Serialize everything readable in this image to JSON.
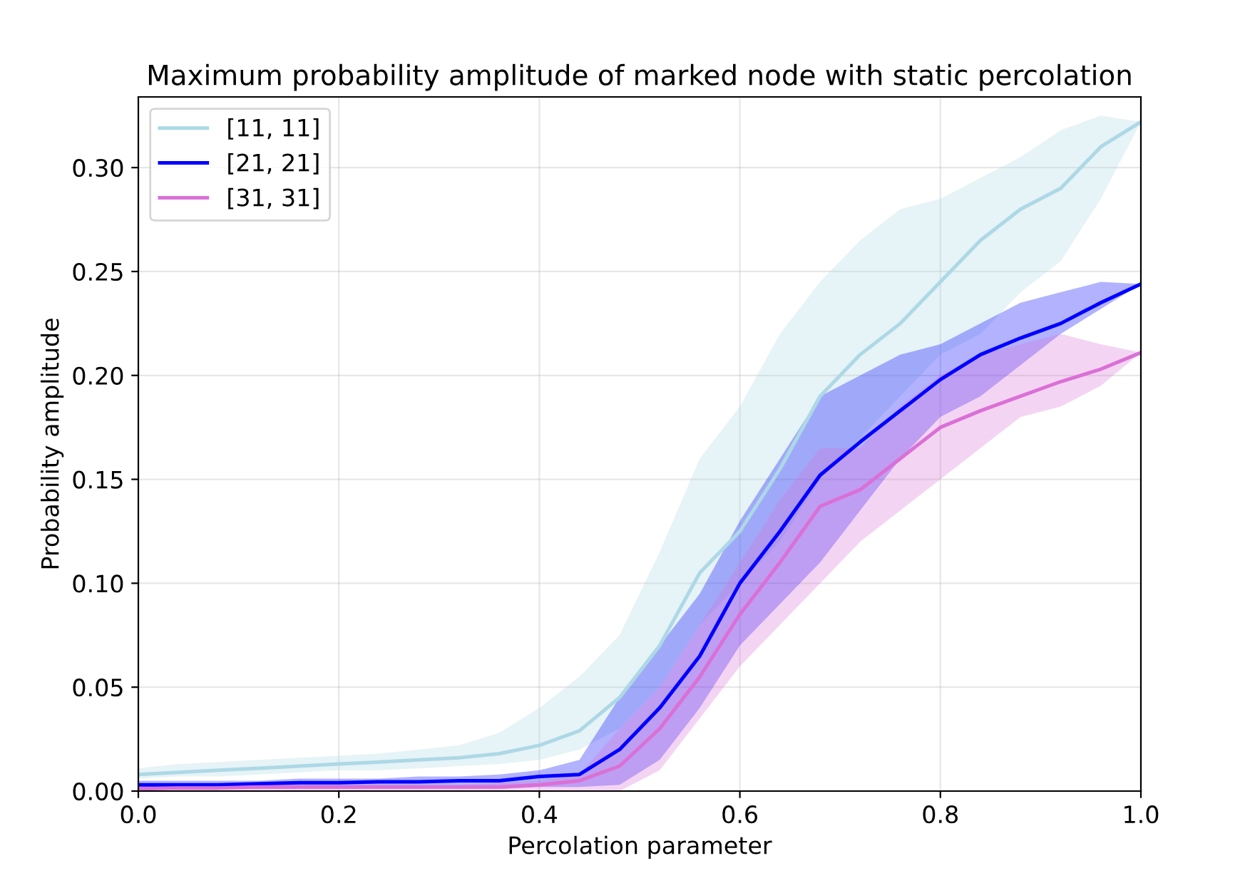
{
  "chart_data": {
    "type": "line",
    "title": "Maximum probability amplitude of marked node with static percolation",
    "xlabel": "Percolation parameter",
    "ylabel": "Probability amplitude",
    "x": [
      0,
      0.04,
      0.08,
      0.12,
      0.16,
      0.2,
      0.24,
      0.28,
      0.32,
      0.36,
      0.4,
      0.44,
      0.48,
      0.52,
      0.56,
      0.6,
      0.64,
      0.68,
      0.72,
      0.76,
      0.8,
      0.84,
      0.88,
      0.92,
      0.96,
      1.0
    ],
    "series": [
      {
        "name": "[11, 11]",
        "color": "#add8e6",
        "values": [
          0.008,
          0.009,
          0.01,
          0.011,
          0.012,
          0.013,
          0.014,
          0.015,
          0.016,
          0.018,
          0.022,
          0.029,
          0.045,
          0.07,
          0.105,
          0.125,
          0.155,
          0.19,
          0.21,
          0.225,
          0.245,
          0.265,
          0.28,
          0.29,
          0.31,
          0.322
        ],
        "lower": [
          0.006,
          0.007,
          0.007,
          0.008,
          0.009,
          0.01,
          0.01,
          0.011,
          0.012,
          0.013,
          0.015,
          0.02,
          0.03,
          0.05,
          0.08,
          0.1,
          0.12,
          0.15,
          0.17,
          0.19,
          0.21,
          0.22,
          0.24,
          0.255,
          0.285,
          0.322
        ],
        "upper": [
          0.011,
          0.013,
          0.014,
          0.015,
          0.016,
          0.017,
          0.018,
          0.02,
          0.022,
          0.028,
          0.04,
          0.055,
          0.075,
          0.115,
          0.16,
          0.185,
          0.22,
          0.245,
          0.265,
          0.28,
          0.285,
          0.295,
          0.305,
          0.318,
          0.325,
          0.322
        ]
      },
      {
        "name": "[21, 21]",
        "color": "#0000ff",
        "values": [
          0.003,
          0.003,
          0.003,
          0.0035,
          0.004,
          0.004,
          0.0045,
          0.0045,
          0.005,
          0.005,
          0.007,
          0.008,
          0.02,
          0.04,
          0.065,
          0.1,
          0.125,
          0.152,
          0.168,
          0.183,
          0.198,
          0.21,
          0.218,
          0.225,
          0.235,
          0.244
        ],
        "lower": [
          0.001,
          0.001,
          0.001,
          0.001,
          0.001,
          0.001,
          0.001,
          0.001,
          0.001,
          0.001,
          0.002,
          0.002,
          0.003,
          0.015,
          0.04,
          0.07,
          0.09,
          0.11,
          0.135,
          0.16,
          0.18,
          0.19,
          0.205,
          0.22,
          0.232,
          0.244
        ],
        "upper": [
          0.005,
          0.005,
          0.005,
          0.005,
          0.006,
          0.006,
          0.006,
          0.007,
          0.007,
          0.008,
          0.01,
          0.015,
          0.045,
          0.07,
          0.095,
          0.13,
          0.16,
          0.19,
          0.2,
          0.21,
          0.215,
          0.225,
          0.235,
          0.24,
          0.245,
          0.244
        ]
      },
      {
        "name": "[31, 31]",
        "color": "#da70d6",
        "values": [
          0.001,
          0.0015,
          0.0015,
          0.002,
          0.002,
          0.002,
          0.002,
          0.002,
          0.002,
          0.002,
          0.003,
          0.005,
          0.012,
          0.03,
          0.055,
          0.085,
          0.11,
          0.137,
          0.145,
          0.16,
          0.175,
          0.183,
          0.19,
          0.197,
          0.203,
          0.211
        ],
        "lower": [
          0,
          0,
          0,
          0,
          0,
          0,
          0,
          0,
          0,
          0,
          0,
          0,
          0,
          0.01,
          0.035,
          0.06,
          0.08,
          0.1,
          0.12,
          0.135,
          0.15,
          0.165,
          0.18,
          0.185,
          0.195,
          0.211
        ],
        "upper": [
          0.003,
          0.003,
          0.003,
          0.003,
          0.003,
          0.003,
          0.003,
          0.003,
          0.003,
          0.004,
          0.005,
          0.008,
          0.03,
          0.05,
          0.08,
          0.11,
          0.14,
          0.165,
          0.165,
          0.185,
          0.2,
          0.21,
          0.215,
          0.22,
          0.215,
          0.211
        ]
      }
    ],
    "xlim": [
      0,
      1
    ],
    "ylim": [
      0,
      0.334
    ],
    "xticks": [
      {
        "value": 0,
        "label": "0.0"
      },
      {
        "value": 0.2,
        "label": "0.2"
      },
      {
        "value": 0.4,
        "label": "0.4"
      },
      {
        "value": 0.6,
        "label": "0.6"
      },
      {
        "value": 0.8,
        "label": "0.8"
      },
      {
        "value": 1,
        "label": "1.0"
      }
    ],
    "yticks": [
      {
        "value": 0,
        "label": "0.00"
      },
      {
        "value": 0.05,
        "label": "0.05"
      },
      {
        "value": 0.1,
        "label": "0.10"
      },
      {
        "value": 0.15,
        "label": "0.15"
      },
      {
        "value": 0.2,
        "label": "0.20"
      },
      {
        "value": 0.25,
        "label": "0.25"
      },
      {
        "value": 0.3,
        "label": "0.30"
      }
    ],
    "grid": true,
    "legend": "top left",
    "marker": "none",
    "line_style": "solid"
  }
}
